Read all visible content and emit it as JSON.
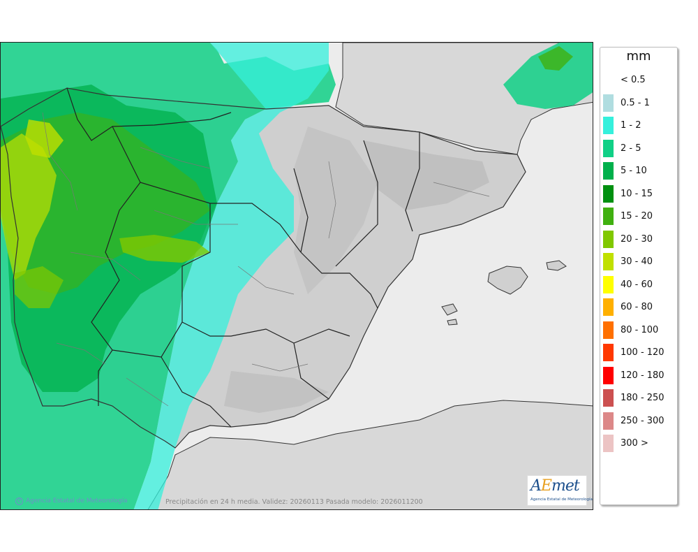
{
  "map": {
    "land_color": "#d6d6d6",
    "sea_color": "#ececec",
    "border_color": "#222222"
  },
  "legend": {
    "title": "mm",
    "items": [
      {
        "label": "< 0.5",
        "color": ""
      },
      {
        "label": "0.5 - 1",
        "color": "#b0dde0"
      },
      {
        "label": "1 - 2",
        "color": "#35f0dc"
      },
      {
        "label": "2 - 5",
        "color": "#10d086"
      },
      {
        "label": "5 - 10",
        "color": "#00b04b"
      },
      {
        "label": "10 - 15",
        "color": "#009010"
      },
      {
        "label": "15 - 20",
        "color": "#40b010"
      },
      {
        "label": "20 - 30",
        "color": "#80c800"
      },
      {
        "label": "30 - 40",
        "color": "#c0e000"
      },
      {
        "label": "40 - 60",
        "color": "#ffff00"
      },
      {
        "label": "60 - 80",
        "color": "#ffb000"
      },
      {
        "label": "80 - 100",
        "color": "#ff7000"
      },
      {
        "label": "100 - 120",
        "color": "#ff3800"
      },
      {
        "label": "120 - 180",
        "color": "#ff0000"
      },
      {
        "label": "180 - 250",
        "color": "#cc5050"
      },
      {
        "label": "250 - 300",
        "color": "#dc8888"
      },
      {
        "label": "300 >",
        "color": "#ecc4c4"
      }
    ]
  },
  "footer": {
    "credit": "Agencia Estatal de Meteorología",
    "caption": "Precipitación en 24 h media. Validez: 20260113 Pasada modelo: 2026011200"
  },
  "logo": {
    "word_a": "A",
    "word_e": "E",
    "word_rest": "met",
    "subtitle": "Agencia Estatal de Meteorología"
  }
}
